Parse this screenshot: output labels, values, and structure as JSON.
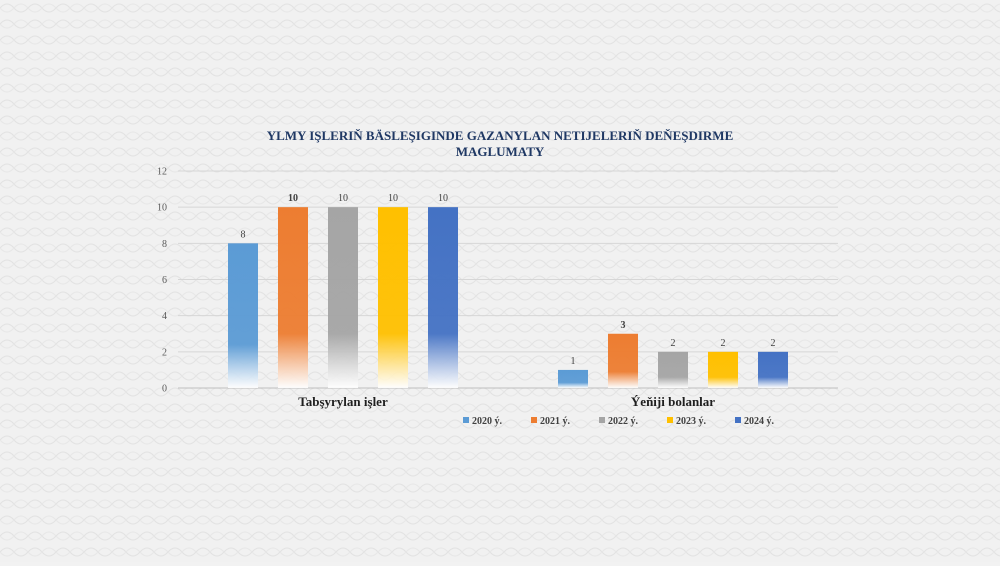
{
  "chart_data": {
    "type": "bar",
    "title": "YLMY IŞLERIŇ BÄSLEŞIGINDE GAZANYLAN NETIJELERIŇ DEŇEŞDIRME MAGLUMATY",
    "categories": [
      "Tabşyrylan işler",
      "Ýeňiji bolanlar"
    ],
    "series": [
      {
        "name": "2020 ý.",
        "values": [
          8,
          1
        ],
        "color": "#5b9bd5"
      },
      {
        "name": "2021 ý.",
        "values": [
          10,
          3
        ],
        "color": "#ed7d31"
      },
      {
        "name": "2022 ý.",
        "values": [
          10,
          2
        ],
        "color": "#a5a5a5"
      },
      {
        "name": "2023 ý.",
        "values": [
          10,
          2
        ],
        "color": "#ffc000"
      },
      {
        "name": "2024 ý.",
        "values": [
          10,
          2
        ],
        "color": "#4472c4"
      }
    ],
    "ylim": [
      0,
      12
    ],
    "yticks": [
      0,
      2,
      4,
      6,
      8,
      10,
      12
    ],
    "xlabel": "",
    "ylabel": "",
    "grid": true,
    "legend": "bottom",
    "label_colors": {
      "2020 ý.": "#2e75b6",
      "2021 ý.": "#c55a11",
      "2022 ý.": "#404040",
      "2023 ý.": "#404040",
      "2024 ý.": "#404040"
    }
  }
}
